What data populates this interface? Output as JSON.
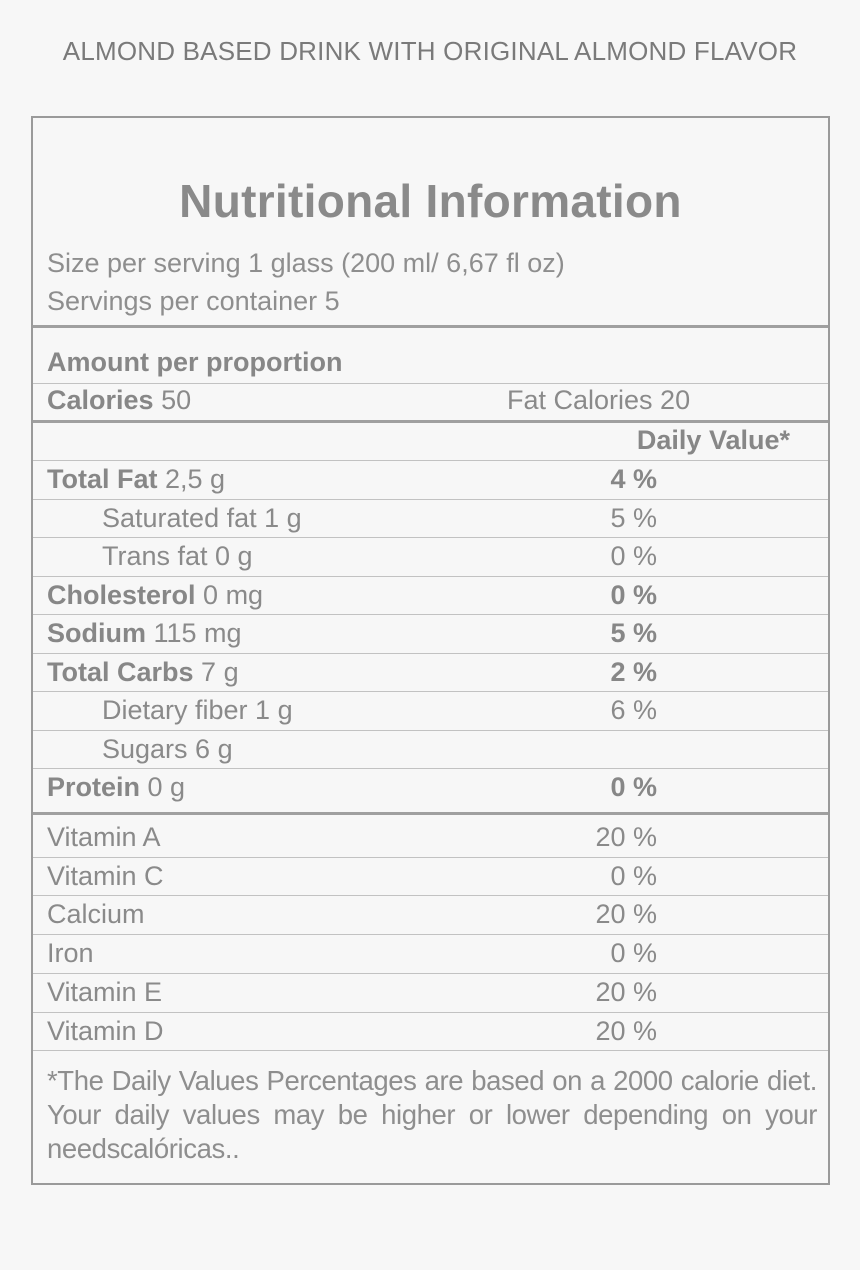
{
  "product_title": "ALMOND BASED DRINK WITH ORIGINAL ALMOND FLAVOR",
  "panel_title": "Nutritional Information",
  "serving_size": "Size per serving 1 glass (200 ml/ 6,67 fl oz)",
  "servings_per_container": "Servings per container 5",
  "amount_header": "Amount per proportion",
  "calories": {
    "label": "Calories",
    "value": "50"
  },
  "fat_calories": "Fat Calories 20",
  "daily_value_header": "Daily Value*",
  "nutrients": [
    {
      "label": "Total Fat",
      "amount": "2,5 g",
      "dv": "4 %",
      "bold": true
    },
    {
      "label": "Saturated fat 1 g",
      "amount": "",
      "dv": "5 %",
      "bold": false
    },
    {
      "label": "Trans fat 0 g",
      "amount": "",
      "dv": "0 %",
      "bold": false
    },
    {
      "label": "Cholesterol",
      "amount": "0 mg",
      "dv": "0 %",
      "bold": true
    },
    {
      "label": "Sodium",
      "amount": "115 mg",
      "dv": "5 %",
      "bold": true
    },
    {
      "label": "Total Carbs",
      "amount": "7 g",
      "dv": "2 %",
      "bold": true
    },
    {
      "label": "Dietary fiber 1 g",
      "amount": "",
      "dv": "6 %",
      "bold": false
    },
    {
      "label": "Sugars 6 g",
      "amount": "",
      "dv": "",
      "bold": false
    },
    {
      "label": "Protein",
      "amount": "0 g",
      "dv": "0 %",
      "bold": true
    }
  ],
  "vitamins": [
    {
      "label": "Vitamin A",
      "dv": "20 %"
    },
    {
      "label": "Vitamin C",
      "dv": "0 %"
    },
    {
      "label": "Calcium",
      "dv": "20 %"
    },
    {
      "label": "Iron",
      "dv": "0 %"
    },
    {
      "label": "Vitamin E",
      "dv": "20 %"
    },
    {
      "label": "Vitamin D",
      "dv": "20 %"
    }
  ],
  "footnote": "*The Daily Values Percentages are based on a 2000 calorie diet. Your daily values may be higher or lower depending on your needscalóricas.."
}
